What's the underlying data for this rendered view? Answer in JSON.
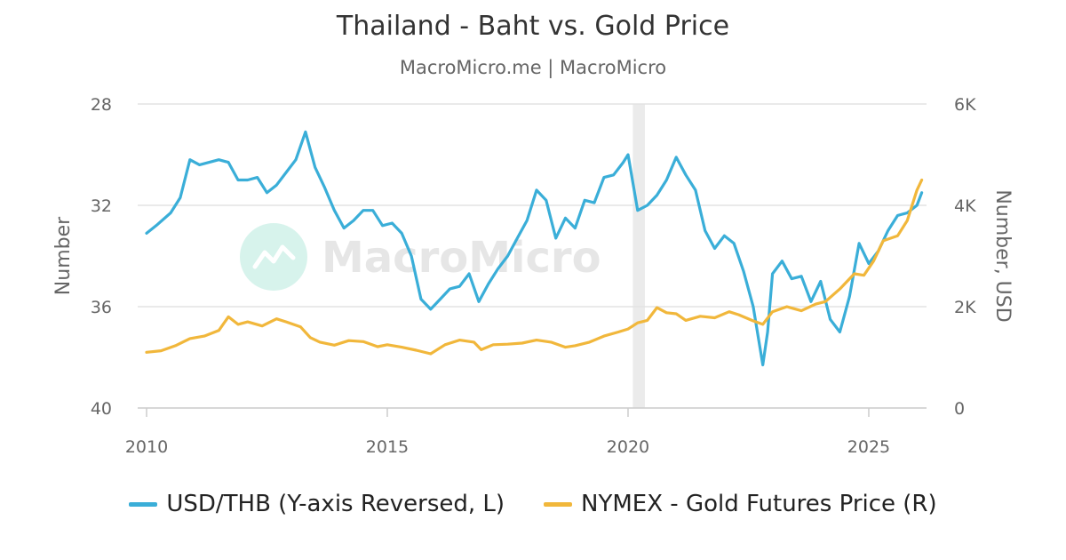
{
  "chart_data": {
    "type": "line",
    "title": "Thailand - Baht vs. Gold Price",
    "subtitle": "MacroMicro.me | MacroMicro",
    "watermark": "MacroMicro",
    "x_range": [
      2010.0,
      2026.2
    ],
    "x_ticks": [
      {
        "value": 2010,
        "label": "2010"
      },
      {
        "value": 2015,
        "label": "2015"
      },
      {
        "value": 2020,
        "label": "2020"
      },
      {
        "value": 2025,
        "label": "2025"
      }
    ],
    "shaded_band": [
      2020.1,
      2020.35
    ],
    "left_axis": {
      "label": "Number",
      "reversed": true,
      "range": [
        28,
        40
      ],
      "ticks": [
        {
          "value": 28,
          "label": "28"
        },
        {
          "value": 32,
          "label": "32"
        },
        {
          "value": 36,
          "label": "36"
        },
        {
          "value": 40,
          "label": "40"
        }
      ]
    },
    "right_axis": {
      "label": "Number, USD",
      "range": [
        0,
        6000
      ],
      "ticks": [
        {
          "value": 0,
          "label": "0"
        },
        {
          "value": 2000,
          "label": "2K"
        },
        {
          "value": 4000,
          "label": "4K"
        },
        {
          "value": 6000,
          "label": "6K"
        }
      ]
    },
    "series": [
      {
        "name": "USD/THB (Y-axis Reversed, L)",
        "axis": "left",
        "color": "#3aaed8",
        "points": [
          [
            2010.0,
            33.1
          ],
          [
            2010.2,
            32.8
          ],
          [
            2010.5,
            32.3
          ],
          [
            2010.7,
            31.7
          ],
          [
            2010.9,
            30.2
          ],
          [
            2011.1,
            30.4
          ],
          [
            2011.3,
            30.3
          ],
          [
            2011.5,
            30.2
          ],
          [
            2011.7,
            30.3
          ],
          [
            2011.9,
            31.0
          ],
          [
            2012.1,
            31.0
          ],
          [
            2012.3,
            30.9
          ],
          [
            2012.5,
            31.5
          ],
          [
            2012.7,
            31.2
          ],
          [
            2012.9,
            30.7
          ],
          [
            2013.1,
            30.2
          ],
          [
            2013.3,
            29.1
          ],
          [
            2013.5,
            30.5
          ],
          [
            2013.7,
            31.3
          ],
          [
            2013.9,
            32.2
          ],
          [
            2014.1,
            32.9
          ],
          [
            2014.3,
            32.6
          ],
          [
            2014.5,
            32.2
          ],
          [
            2014.7,
            32.2
          ],
          [
            2014.9,
            32.8
          ],
          [
            2015.1,
            32.7
          ],
          [
            2015.3,
            33.1
          ],
          [
            2015.5,
            34.0
          ],
          [
            2015.7,
            35.7
          ],
          [
            2015.9,
            36.1
          ],
          [
            2016.1,
            35.7
          ],
          [
            2016.3,
            35.3
          ],
          [
            2016.5,
            35.2
          ],
          [
            2016.7,
            34.7
          ],
          [
            2016.9,
            35.8
          ],
          [
            2017.1,
            35.1
          ],
          [
            2017.3,
            34.5
          ],
          [
            2017.5,
            34.0
          ],
          [
            2017.7,
            33.3
          ],
          [
            2017.9,
            32.6
          ],
          [
            2018.1,
            31.4
          ],
          [
            2018.3,
            31.8
          ],
          [
            2018.5,
            33.3
          ],
          [
            2018.7,
            32.5
          ],
          [
            2018.9,
            32.9
          ],
          [
            2019.1,
            31.8
          ],
          [
            2019.3,
            31.9
          ],
          [
            2019.5,
            30.9
          ],
          [
            2019.7,
            30.8
          ],
          [
            2019.9,
            30.3
          ],
          [
            2020.0,
            30.0
          ],
          [
            2020.2,
            32.2
          ],
          [
            2020.4,
            32.0
          ],
          [
            2020.6,
            31.6
          ],
          [
            2020.8,
            31.0
          ],
          [
            2021.0,
            30.1
          ],
          [
            2021.2,
            30.8
          ],
          [
            2021.4,
            31.4
          ],
          [
            2021.6,
            33.0
          ],
          [
            2021.8,
            33.7
          ],
          [
            2022.0,
            33.2
          ],
          [
            2022.2,
            33.5
          ],
          [
            2022.4,
            34.6
          ],
          [
            2022.6,
            36.0
          ],
          [
            2022.8,
            38.3
          ],
          [
            2022.9,
            37.0
          ],
          [
            2023.0,
            34.7
          ],
          [
            2023.2,
            34.2
          ],
          [
            2023.4,
            34.9
          ],
          [
            2023.6,
            34.8
          ],
          [
            2023.8,
            35.8
          ],
          [
            2024.0,
            35.0
          ],
          [
            2024.2,
            36.5
          ],
          [
            2024.4,
            37.0
          ],
          [
            2024.6,
            35.6
          ],
          [
            2024.8,
            33.5
          ],
          [
            2025.0,
            34.3
          ],
          [
            2025.2,
            33.8
          ],
          [
            2025.4,
            33.0
          ],
          [
            2025.6,
            32.4
          ],
          [
            2025.8,
            32.3
          ],
          [
            2026.0,
            32.0
          ],
          [
            2026.1,
            31.5
          ]
        ]
      },
      {
        "name": "NYMEX - Gold Futures Price (R)",
        "axis": "right",
        "color": "#f1b73b",
        "points": [
          [
            2010.0,
            1100
          ],
          [
            2010.3,
            1130
          ],
          [
            2010.6,
            1230
          ],
          [
            2010.9,
            1370
          ],
          [
            2011.2,
            1420
          ],
          [
            2011.5,
            1530
          ],
          [
            2011.7,
            1800
          ],
          [
            2011.9,
            1650
          ],
          [
            2012.1,
            1700
          ],
          [
            2012.4,
            1620
          ],
          [
            2012.7,
            1760
          ],
          [
            2012.9,
            1700
          ],
          [
            2013.2,
            1600
          ],
          [
            2013.4,
            1390
          ],
          [
            2013.6,
            1300
          ],
          [
            2013.9,
            1240
          ],
          [
            2014.2,
            1330
          ],
          [
            2014.5,
            1310
          ],
          [
            2014.8,
            1210
          ],
          [
            2015.0,
            1250
          ],
          [
            2015.3,
            1200
          ],
          [
            2015.6,
            1140
          ],
          [
            2015.9,
            1070
          ],
          [
            2016.2,
            1250
          ],
          [
            2016.5,
            1340
          ],
          [
            2016.8,
            1300
          ],
          [
            2016.95,
            1150
          ],
          [
            2017.2,
            1250
          ],
          [
            2017.5,
            1260
          ],
          [
            2017.8,
            1280
          ],
          [
            2018.1,
            1340
          ],
          [
            2018.4,
            1300
          ],
          [
            2018.7,
            1200
          ],
          [
            2018.9,
            1230
          ],
          [
            2019.2,
            1300
          ],
          [
            2019.5,
            1420
          ],
          [
            2019.8,
            1500
          ],
          [
            2020.0,
            1560
          ],
          [
            2020.2,
            1680
          ],
          [
            2020.4,
            1730
          ],
          [
            2020.6,
            1980
          ],
          [
            2020.8,
            1880
          ],
          [
            2021.0,
            1860
          ],
          [
            2021.2,
            1730
          ],
          [
            2021.5,
            1810
          ],
          [
            2021.8,
            1780
          ],
          [
            2022.1,
            1900
          ],
          [
            2022.3,
            1840
          ],
          [
            2022.6,
            1720
          ],
          [
            2022.8,
            1650
          ],
          [
            2023.0,
            1900
          ],
          [
            2023.3,
            2000
          ],
          [
            2023.6,
            1920
          ],
          [
            2023.9,
            2050
          ],
          [
            2024.1,
            2100
          ],
          [
            2024.4,
            2350
          ],
          [
            2024.7,
            2650
          ],
          [
            2024.9,
            2620
          ],
          [
            2025.1,
            2900
          ],
          [
            2025.3,
            3300
          ],
          [
            2025.6,
            3400
          ],
          [
            2025.8,
            3700
          ],
          [
            2026.0,
            4300
          ],
          [
            2026.1,
            4500
          ]
        ]
      }
    ],
    "legend_position": "bottom",
    "grid": true
  }
}
